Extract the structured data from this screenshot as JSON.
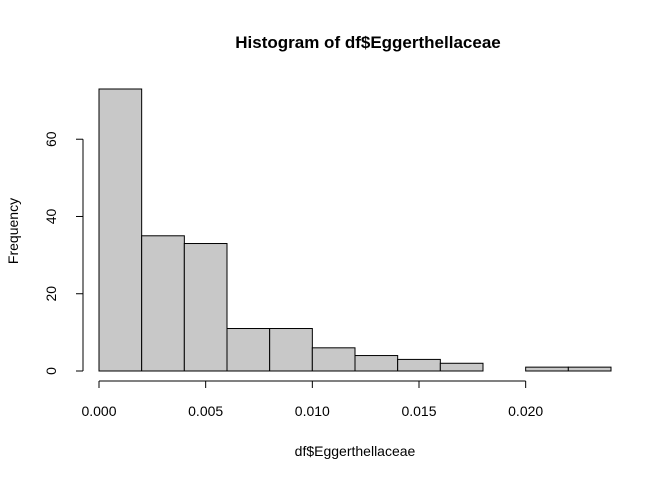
{
  "chart_data": {
    "type": "bar",
    "title": "Histogram of df$Eggerthellaceae",
    "xlabel": "df$Eggerthellaceae",
    "ylabel": "Frequency",
    "bin_edges": [
      0.0,
      0.002,
      0.004,
      0.006,
      0.008,
      0.01,
      0.012,
      0.014,
      0.016,
      0.018,
      0.02,
      0.022,
      0.024
    ],
    "values": [
      73,
      35,
      33,
      11,
      11,
      6,
      4,
      3,
      2,
      0,
      1,
      1
    ],
    "xlim": [
      0.0,
      0.024
    ],
    "ylim": [
      0,
      75
    ],
    "x_ticks": [
      {
        "value": 0.0,
        "label": "0.000"
      },
      {
        "value": 0.005,
        "label": "0.005"
      },
      {
        "value": 0.01,
        "label": "0.010"
      },
      {
        "value": 0.015,
        "label": "0.015"
      },
      {
        "value": 0.02,
        "label": "0.020"
      }
    ],
    "y_ticks": [
      {
        "value": 0,
        "label": "0"
      },
      {
        "value": 20,
        "label": "20"
      },
      {
        "value": 40,
        "label": "40"
      },
      {
        "value": 60,
        "label": "60"
      }
    ],
    "grid": false,
    "legend": "none",
    "bar_fill": "#c8c8c8",
    "bar_stroke": "#000000"
  }
}
